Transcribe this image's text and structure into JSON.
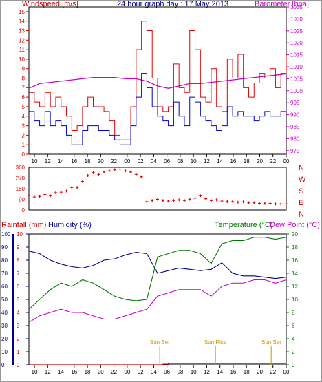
{
  "header": {
    "windspeed_label": "Windspeed [m/s]",
    "title": "24 hour graph day : 17 May 2013",
    "barometer_label": "Barometer [hpa]",
    "rainfall_label": "Rainfall (mm)",
    "humidity_label": "Humidity (%)",
    "temperature_label": "Temperature (°C)",
    "dewpoint_label": "Dew Point (°C)"
  },
  "colors": {
    "wind_red": "#e00000",
    "wind_blue": "#0000cc",
    "barometer": "#cc00cc",
    "humidity_blue": "#000099",
    "temperature": "#007700",
    "dewpoint": "#cc00cc",
    "rainfall": "#cc0000",
    "sun": "#cc9900",
    "axis_dark_blue": "#000099"
  },
  "chart_data": [
    {
      "type": "line",
      "title": "24 hour graph day : 17 May 2013",
      "x_ticks": [
        "10",
        "12",
        "14",
        "16",
        "18",
        "20",
        "22",
        "00",
        "02",
        "04",
        "06",
        "08",
        "10",
        "12",
        "14",
        "16",
        "18",
        "20",
        "22",
        "00"
      ],
      "y_left_label": "Windspeed [m/s]",
      "y_left_ticks": [
        "0",
        "1",
        "2",
        "3",
        "4",
        "5",
        "6",
        "7",
        "8",
        "9",
        "10",
        "11",
        "12",
        "13",
        "14",
        "15"
      ],
      "y_left_range": [
        0,
        15.5
      ],
      "y_right_label": "Barometer [hpa]",
      "y_right_ticks": [
        "975",
        "980",
        "985",
        "990",
        "995",
        "1000",
        "1005",
        "1010",
        "1015",
        "1020",
        "1025",
        "1030",
        "1035"
      ],
      "y_right_range": [
        973.5,
        1035
      ],
      "x_range_hours": [
        0,
        24
      ],
      "series": [
        {
          "name": "Windspeed [m/s]",
          "role": "gust",
          "x": [
            0,
            0.5,
            1,
            1.5,
            2,
            2.5,
            3,
            3.5,
            4,
            4.5,
            5,
            5.5,
            6,
            6.5,
            7,
            7.5,
            8,
            8.5,
            9,
            9.5,
            10,
            10.5,
            11,
            11.5,
            12,
            12.5,
            13,
            13.5,
            14,
            14.5,
            15,
            15.5,
            16,
            16.5,
            17,
            17.5,
            18,
            18.5,
            19,
            19.5,
            20,
            20.5,
            21,
            21.5,
            22,
            22.5,
            23,
            23.5,
            24
          ],
          "values": [
            6.5,
            5.5,
            5,
            6.5,
            5,
            6,
            5,
            4,
            2.5,
            3,
            5,
            6,
            5,
            5,
            4.5,
            3.5,
            2,
            1.5,
            1.5,
            5,
            11,
            14,
            13,
            8,
            5,
            4.5,
            5,
            9.5,
            7,
            6.5,
            13,
            11,
            6,
            5.5,
            9,
            5,
            4.5,
            10,
            8,
            10.5,
            7,
            6,
            7.5,
            8.5,
            8,
            9,
            7,
            8.5,
            10.5
          ]
        },
        {
          "name": "Windspeed [m/s]",
          "role": "average",
          "x": [
            0,
            0.5,
            1,
            1.5,
            2,
            2.5,
            3,
            3.5,
            4,
            4.5,
            5,
            5.5,
            6,
            6.5,
            7,
            7.5,
            8,
            8.5,
            9,
            9.5,
            10,
            10.5,
            11,
            11.5,
            12,
            12.5,
            13,
            13.5,
            14,
            14.5,
            15,
            15.5,
            16,
            16.5,
            17,
            17.5,
            18,
            18.5,
            19,
            19.5,
            20,
            20.5,
            21,
            21.5,
            22,
            22.5,
            23,
            23.5,
            24
          ],
          "values": [
            4.5,
            3.5,
            3,
            4.5,
            3,
            3.5,
            3,
            2,
            1,
            1,
            2.5,
            3,
            3,
            2.5,
            2.5,
            2,
            1.5,
            1,
            1,
            3,
            6,
            8.5,
            7,
            5,
            4,
            3.5,
            3,
            5.5,
            4,
            3,
            6,
            5.5,
            4,
            3.5,
            3,
            2.5,
            3,
            5,
            4,
            4.5,
            4,
            4,
            3.5,
            4,
            4.5,
            4,
            4,
            4.5,
            5
          ]
        },
        {
          "name": "Barometer [hpa]",
          "x": [
            0,
            1,
            2,
            3,
            4,
            5,
            6,
            7,
            8,
            9,
            10,
            11,
            12,
            13,
            14,
            15,
            16,
            17,
            18,
            19,
            20,
            21,
            22,
            23,
            24
          ],
          "values": [
            1001,
            1003,
            1003.5,
            1004,
            1004.5,
            1005,
            1005.5,
            1005.5,
            1005.5,
            1005,
            1005,
            1004,
            1002,
            1001,
            1002,
            1003,
            1003,
            1003.5,
            1004,
            1004.5,
            1005,
            1005.5,
            1006,
            1006.5,
            1007
          ]
        }
      ]
    },
    {
      "type": "scatter",
      "title": "",
      "series_name": "Wind direction",
      "y_left_ticks": [
        "0",
        "90",
        "180",
        "270",
        "360"
      ],
      "y_left_range": [
        0,
        360
      ],
      "y_right_ticks": [
        "N",
        "W",
        "S",
        "E",
        "N"
      ],
      "x_range_hours": [
        0,
        24
      ],
      "x": [
        0,
        0.5,
        1,
        1.5,
        2,
        2.5,
        3,
        3.5,
        4,
        4.5,
        5,
        5.5,
        6,
        6.5,
        7,
        7.5,
        8,
        8.5,
        9,
        9.5,
        10,
        10.5,
        11,
        11.5,
        12,
        12.5,
        13,
        13.5,
        14,
        14.5,
        15,
        15.5,
        16,
        16.5,
        17,
        17.5,
        18,
        18.5,
        19,
        19.5,
        20,
        20.5,
        21,
        21.5,
        22,
        22.5,
        23,
        23.5,
        24
      ],
      "values": [
        120,
        110,
        115,
        130,
        120,
        145,
        150,
        160,
        190,
        190,
        240,
        290,
        315,
        300,
        320,
        330,
        340,
        345,
        330,
        320,
        300,
        280,
        70,
        80,
        90,
        80,
        75,
        80,
        85,
        80,
        90,
        100,
        120,
        95,
        80,
        85,
        75,
        70,
        70,
        65,
        68,
        60,
        60,
        55,
        55,
        55,
        50,
        50,
        50
      ]
    },
    {
      "type": "line",
      "title": "",
      "x_ticks": [
        "10",
        "12",
        "14",
        "16",
        "18",
        "20",
        "22",
        "00",
        "02",
        "04",
        "06",
        "08",
        "10",
        "12",
        "14",
        "16",
        "18",
        "20",
        "22",
        "00"
      ],
      "y_left_label": "Rainfall (mm)",
      "y_left_ticks": [
        "0",
        "1",
        "2",
        "3",
        "4",
        "5",
        "6",
        "7",
        "8",
        "9",
        "10"
      ],
      "y_left_range": [
        0,
        10
      ],
      "y_left2_label": "Humidity (%)",
      "y_left2_ticks": [
        "0",
        "10",
        "20",
        "30",
        "40",
        "50",
        "60",
        "70",
        "80",
        "90",
        "100"
      ],
      "y_left2_range": [
        0,
        100
      ],
      "y_right_label": "Temperature (°C)",
      "y_right_ticks": [
        "0",
        "2",
        "4",
        "6",
        "8",
        "10",
        "12",
        "14",
        "16",
        "18",
        "20"
      ],
      "y_right_range": [
        0,
        20
      ],
      "x_range_hours": [
        0,
        24
      ],
      "series": [
        {
          "name": "Humidity (%)",
          "x": [
            0,
            1,
            2,
            3,
            4,
            5,
            6,
            7,
            8,
            9,
            10,
            11,
            12,
            13,
            14,
            15,
            16,
            17,
            18,
            19,
            20,
            21,
            22,
            23,
            24
          ],
          "values": [
            87,
            85,
            80,
            77,
            75,
            74,
            76,
            80,
            81,
            84,
            86,
            85,
            70,
            72,
            74,
            73,
            72,
            73,
            78,
            70,
            68,
            68,
            67,
            66,
            67
          ]
        },
        {
          "name": "Temperature (°C)",
          "x": [
            0,
            1,
            2,
            3,
            4,
            5,
            6,
            7,
            8,
            9,
            10,
            11,
            12,
            13,
            14,
            15,
            16,
            17,
            18,
            19,
            20,
            21,
            22,
            23,
            24
          ],
          "values": [
            8.5,
            10,
            11.5,
            12.5,
            12,
            13,
            12.5,
            11.5,
            10.5,
            10,
            9.8,
            10,
            16.5,
            17,
            17.5,
            17.5,
            17,
            15.5,
            18.5,
            19,
            19,
            19.5,
            19.5,
            19.2,
            19.5
          ]
        },
        {
          "name": "Dew Point (°C)",
          "x": [
            0,
            1,
            2,
            3,
            4,
            5,
            6,
            7,
            8,
            9,
            10,
            11,
            12,
            13,
            14,
            15,
            16,
            17,
            18,
            19,
            20,
            21,
            22,
            23,
            24
          ],
          "values": [
            6.5,
            7.5,
            8,
            8.5,
            8,
            8,
            7.5,
            7,
            7,
            7.5,
            8,
            8.5,
            10.5,
            11,
            11.5,
            11.5,
            11.5,
            10.5,
            12,
            12.5,
            12.5,
            13,
            13,
            12.5,
            13
          ]
        },
        {
          "name": "Rainfall (mm)",
          "x": [
            0,
            12,
            12.5,
            13,
            13.5,
            24
          ],
          "values": [
            0,
            0,
            0.05,
            0.1,
            0.1,
            0.1
          ]
        }
      ],
      "annotations": [
        {
          "text": "Sun Set",
          "hour": 12.2
        },
        {
          "text": "Sun Rise",
          "hour": 17.4
        },
        {
          "text": "Sun Set",
          "hour": 22.6
        }
      ]
    }
  ]
}
